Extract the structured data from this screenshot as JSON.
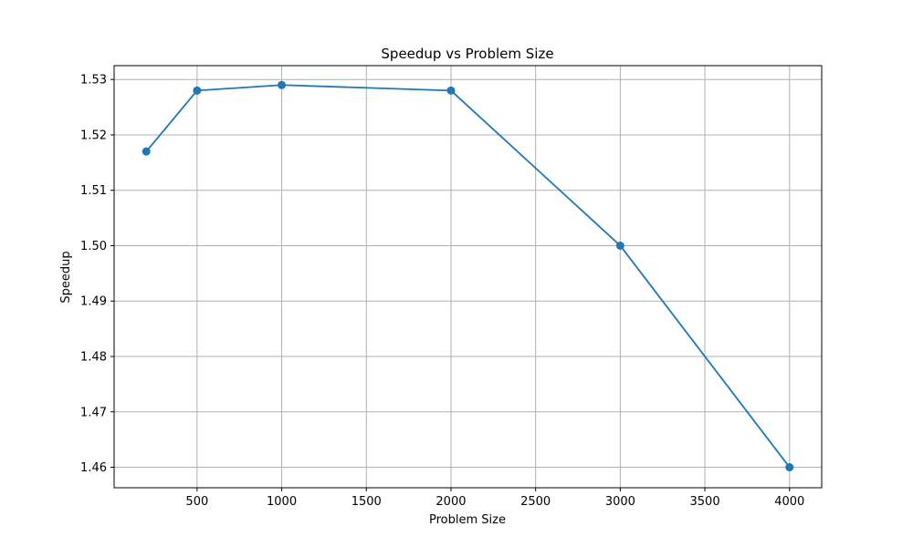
{
  "chart_data": {
    "type": "line",
    "title": "Speedup vs Problem Size",
    "xlabel": "Problem Size",
    "ylabel": "Speedup",
    "x": [
      200,
      500,
      1000,
      2000,
      3000,
      4000
    ],
    "series": [
      {
        "values": [
          1.517,
          1.528,
          1.529,
          1.528,
          1.5,
          1.46
        ],
        "color": "#1f77b4",
        "marker": "circle"
      }
    ],
    "xlim": [
      10,
      4190
    ],
    "ylim": [
      1.4563,
      1.5325
    ],
    "xticks": [
      500,
      1000,
      1500,
      2000,
      2500,
      3000,
      3500,
      4000
    ],
    "xtick_labels": [
      "500",
      "1000",
      "1500",
      "2000",
      "2500",
      "3000",
      "3500",
      "4000"
    ],
    "yticks": [
      1.46,
      1.47,
      1.48,
      1.49,
      1.5,
      1.51,
      1.52,
      1.53
    ],
    "ytick_labels": [
      "1.46",
      "1.47",
      "1.48",
      "1.49",
      "1.50",
      "1.51",
      "1.52",
      "1.53"
    ],
    "grid": true,
    "grid_color": "#b0b0b0"
  }
}
